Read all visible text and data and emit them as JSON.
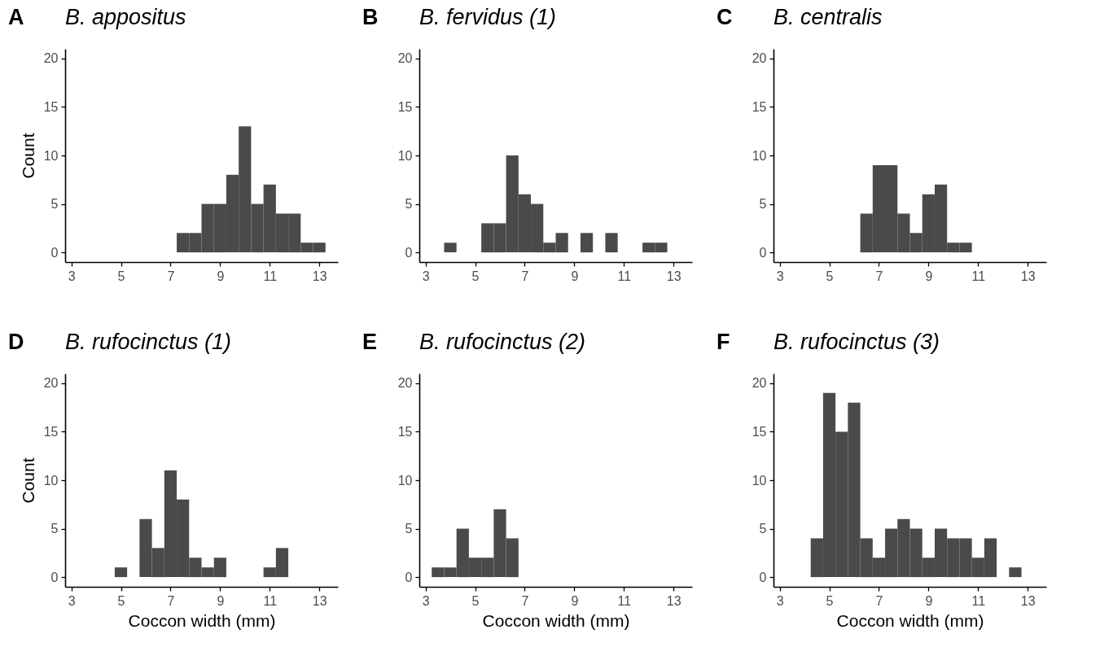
{
  "chart_data": [
    {
      "type": "histogram",
      "title": "B. appositus",
      "annotations": [
        "A"
      ],
      "ylabel": "Count",
      "color": "#4a4a4a",
      "bins": [
        7.25,
        7.75,
        8.25,
        8.75,
        9.25,
        9.75,
        10.25,
        10.75,
        11.25,
        11.75,
        12.25,
        12.75,
        13.25
      ],
      "values": [
        2,
        2,
        5,
        5,
        8,
        13,
        5,
        7,
        4,
        4,
        1,
        1
      ],
      "xlim": [
        2.75,
        13.75
      ],
      "ylim": [
        -1,
        21
      ],
      "xticks": [
        3,
        5,
        7,
        9,
        11,
        13
      ],
      "yticks": [
        0,
        5,
        10,
        15,
        20
      ]
    },
    {
      "type": "histogram",
      "title": "B. fervidus (1)",
      "annotations": [
        "B"
      ],
      "color": "#4a4a4a",
      "bins": [
        3.75,
        4.25,
        4.75,
        5.25,
        5.75,
        6.25,
        6.75,
        7.25,
        7.75,
        8.25,
        8.75,
        9.25,
        9.75,
        10.25,
        10.75,
        11.25,
        11.75,
        12.25,
        12.75
      ],
      "values": [
        1,
        0,
        0,
        3,
        3,
        10,
        6,
        5,
        1,
        2,
        0,
        2,
        0,
        2,
        0,
        0,
        1,
        1
      ],
      "xlim": [
        2.75,
        13.75
      ],
      "ylim": [
        -1,
        21
      ],
      "xticks": [
        3,
        5,
        7,
        9,
        11,
        13
      ],
      "yticks": [
        0,
        5,
        10,
        15,
        20
      ]
    },
    {
      "type": "histogram",
      "title": "B. centralis",
      "annotations": [
        "C"
      ],
      "color": "#4a4a4a",
      "bins": [
        6.25,
        6.75,
        7.25,
        7.75,
        8.25,
        8.75,
        9.25,
        9.75,
        10.25,
        10.75
      ],
      "values": [
        4,
        9,
        9,
        4,
        2,
        6,
        7,
        1,
        1
      ],
      "xlim": [
        2.75,
        13.75
      ],
      "ylim": [
        -1,
        21
      ],
      "xticks": [
        3,
        5,
        7,
        9,
        11,
        13
      ],
      "yticks": [
        0,
        5,
        10,
        15,
        20
      ]
    },
    {
      "type": "histogram",
      "title": "B. rufocinctus (1)",
      "annotations": [
        "D"
      ],
      "xlabel": "Coccon width (mm)",
      "ylabel": "Count",
      "color": "#4a4a4a",
      "bins": [
        4.75,
        5.25,
        5.75,
        6.25,
        6.75,
        7.25,
        7.75,
        8.25,
        8.75,
        9.25,
        9.75,
        10.25,
        10.75,
        11.25,
        11.75
      ],
      "values": [
        1,
        0,
        6,
        3,
        11,
        8,
        2,
        1,
        2,
        0,
        0,
        0,
        1,
        3
      ],
      "xlim": [
        2.75,
        13.75
      ],
      "ylim": [
        -1,
        21
      ],
      "xticks": [
        3,
        5,
        7,
        9,
        11,
        13
      ],
      "yticks": [
        0,
        5,
        10,
        15,
        20
      ]
    },
    {
      "type": "histogram",
      "title": "B. rufocinctus (2)",
      "annotations": [
        "E"
      ],
      "xlabel": "Coccon width (mm)",
      "color": "#4a4a4a",
      "bins": [
        3.25,
        3.75,
        4.25,
        4.75,
        5.25,
        5.75,
        6.25,
        6.75
      ],
      "values": [
        1,
        1,
        5,
        2,
        2,
        7,
        4
      ],
      "xlim": [
        2.75,
        13.75
      ],
      "ylim": [
        -1,
        21
      ],
      "xticks": [
        3,
        5,
        7,
        9,
        11,
        13
      ],
      "yticks": [
        0,
        5,
        10,
        15,
        20
      ]
    },
    {
      "type": "histogram",
      "title": "B. rufocinctus (3)",
      "annotations": [
        "F"
      ],
      "xlabel": "Coccon width (mm)",
      "color": "#4a4a4a",
      "bins": [
        4.25,
        4.75,
        5.25,
        5.75,
        6.25,
        6.75,
        7.25,
        7.75,
        8.25,
        8.75,
        9.25,
        9.75,
        10.25,
        10.75,
        11.25,
        11.75,
        12.25,
        12.75
      ],
      "values": [
        4,
        19,
        15,
        18,
        4,
        2,
        5,
        6,
        5,
        2,
        5,
        4,
        4,
        2,
        4,
        0,
        1
      ],
      "xlim": [
        2.75,
        13.75
      ],
      "ylim": [
        -1,
        21
      ],
      "xticks": [
        3,
        5,
        7,
        9,
        11,
        13
      ],
      "yticks": [
        0,
        5,
        10,
        15,
        20
      ]
    }
  ]
}
